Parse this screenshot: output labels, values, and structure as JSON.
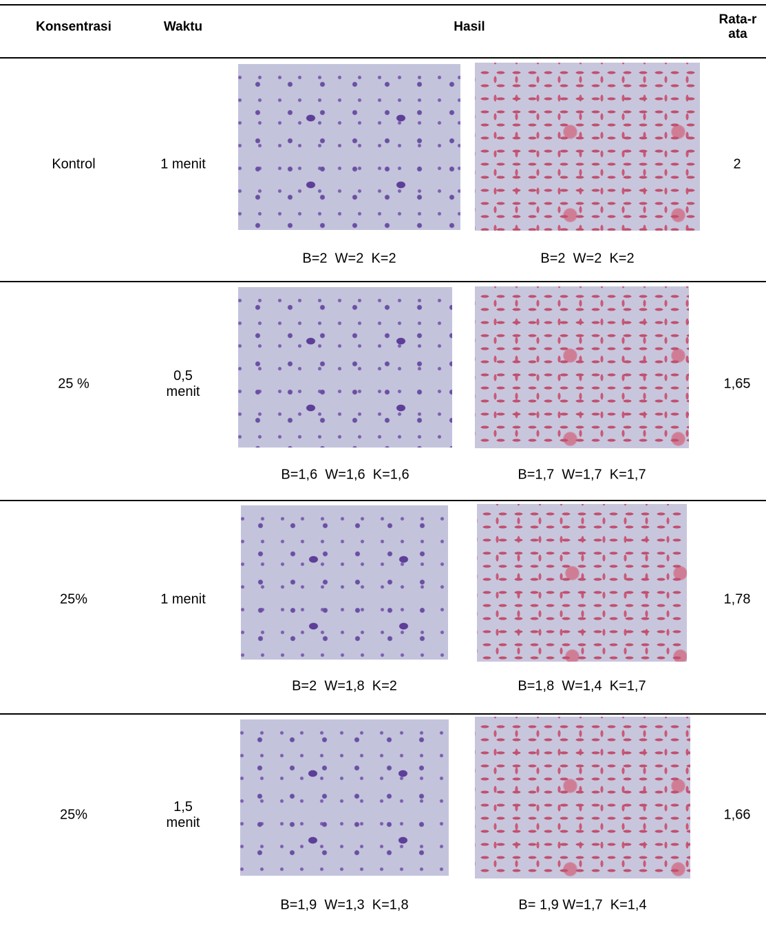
{
  "header": {
    "konsentrasi": "Konsentrasi",
    "waktu": "Waktu",
    "hasil": "Hasil",
    "rata_rata": "Rata-rata"
  },
  "rows": [
    {
      "konsentrasi": "Kontrol",
      "waktu": "1 menit",
      "hasil": [
        "B=2  W=2  K=2",
        "B=2  W=2  K=2"
      ],
      "rata_rata": "2"
    },
    {
      "konsentrasi": "25 %",
      "waktu": "0,5 menit",
      "hasil": [
        "B=1,6  W=1,6  K=1,6",
        "B=1,7  W=1,7  K=1,7"
      ],
      "rata_rata": "1,65"
    },
    {
      "konsentrasi": "25%",
      "waktu": "1 menit",
      "hasil": [
        "B=2  W=1,8  K=2",
        "B=1,8  W=1,4  K=1,7"
      ],
      "rata_rata": "1,78"
    },
    {
      "konsentrasi": "25%",
      "waktu": "1,5 menit",
      "hasil": [
        "B=1,9  W=1,3  K=1,8",
        "B= 1,9 W=1,7  K=1,4"
      ],
      "rata_rata": "1,66"
    }
  ]
}
